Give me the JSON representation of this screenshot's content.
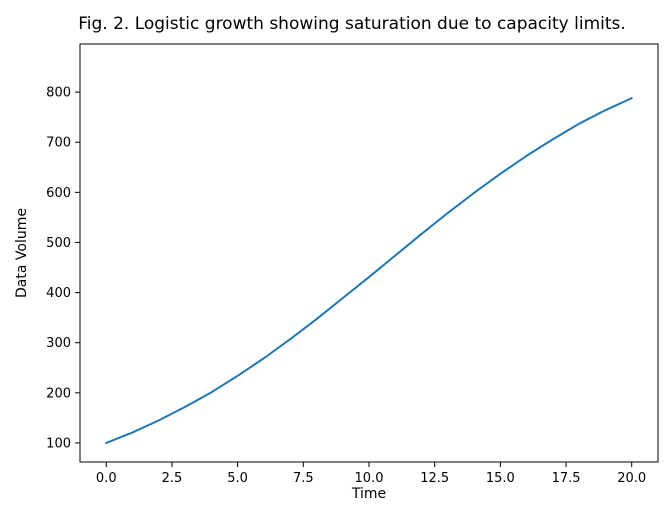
{
  "chart_data": {
    "type": "line",
    "title": "Fig. 2. Logistic growth showing saturation due to capacity limits.",
    "xlabel": "Time",
    "ylabel": "Data Volume",
    "xlim": [
      -1.0,
      21.0
    ],
    "ylim": [
      62,
      896
    ],
    "grid": false,
    "xticks": [
      0.0,
      2.5,
      5.0,
      7.5,
      10.0,
      12.5,
      15.0,
      17.5,
      20.0
    ],
    "xtick_labels": [
      "0.0",
      "2.5",
      "5.0",
      "7.5",
      "10.0",
      "12.5",
      "15.0",
      "17.5",
      "20.0"
    ],
    "yticks": [
      100,
      200,
      300,
      400,
      500,
      600,
      700,
      800
    ],
    "ytick_labels": [
      "100",
      "200",
      "300",
      "400",
      "500",
      "600",
      "700",
      "800"
    ],
    "series": [
      {
        "color": "#1f77b4",
        "x": [
          0,
          1,
          2,
          3,
          4,
          5,
          6,
          7,
          8,
          9,
          10,
          11,
          12,
          13,
          14,
          15,
          16,
          17,
          18,
          19,
          20
        ],
        "y": [
          100,
          121,
          145,
          172,
          201,
          234,
          269,
          307,
          347,
          389,
          431,
          474,
          517,
          559,
          599,
          637,
          673,
          706,
          737,
          764,
          788
        ]
      }
    ]
  }
}
